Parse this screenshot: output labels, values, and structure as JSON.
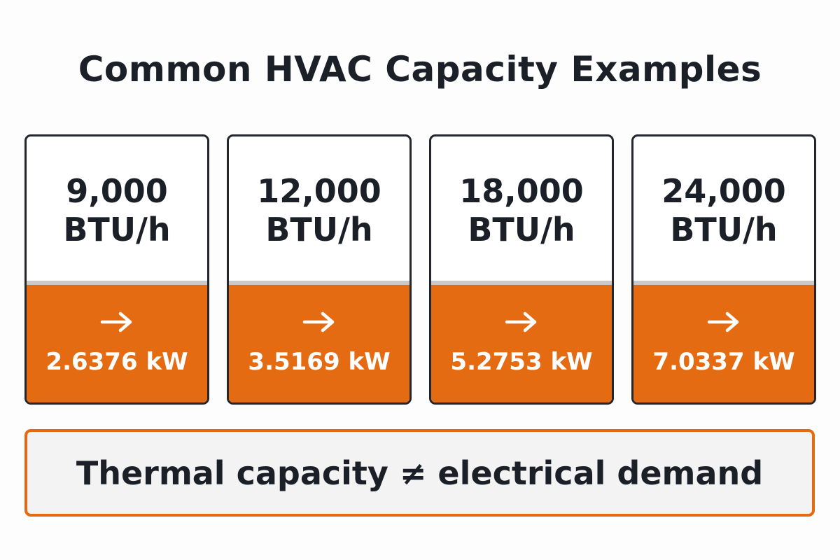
{
  "header": {
    "title": "Common HVAC Capacity Examples"
  },
  "cards": [
    {
      "capacity": "9,000",
      "unit": "BTU/h",
      "power": "2.6376 kW"
    },
    {
      "capacity": "12,000",
      "unit": "BTU/h",
      "power": "3.5169 kW"
    },
    {
      "capacity": "18,000",
      "unit": "BTU/h",
      "power": "5.2753 kW"
    },
    {
      "capacity": "24,000",
      "unit": "BTU/h",
      "power": "7.0337 kW"
    }
  ],
  "footer": {
    "note": "Thermal capacity ≠ electrical demand"
  }
}
